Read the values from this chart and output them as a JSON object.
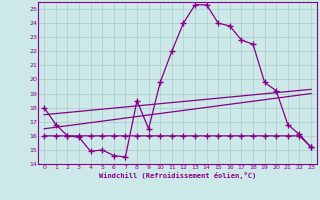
{
  "xlabel": "Windchill (Refroidissement éolien,°C)",
  "background_color": "#cce8e8",
  "line_color": "#880088",
  "grid_color": "#aacccc",
  "xlim_min": -0.5,
  "xlim_max": 23.5,
  "ylim_min": 14,
  "ylim_max": 25.5,
  "yticks": [
    14,
    15,
    16,
    17,
    18,
    19,
    20,
    21,
    22,
    23,
    24,
    25
  ],
  "xticks": [
    0,
    1,
    2,
    3,
    4,
    5,
    6,
    7,
    8,
    9,
    10,
    11,
    12,
    13,
    14,
    15,
    16,
    17,
    18,
    19,
    20,
    21,
    22,
    23
  ],
  "curve1_x": [
    0,
    1,
    2,
    3,
    4,
    5,
    6,
    7,
    8,
    9,
    10,
    11,
    12,
    13,
    14,
    15,
    16,
    17,
    18,
    19,
    20,
    21,
    22,
    23
  ],
  "curve1_y": [
    18.0,
    16.8,
    16.0,
    15.9,
    14.9,
    15.0,
    14.6,
    14.5,
    18.5,
    16.5,
    19.8,
    22.0,
    24.0,
    25.3,
    25.3,
    24.0,
    23.8,
    22.8,
    22.5,
    19.8,
    19.2,
    16.8,
    16.1,
    15.2
  ],
  "curve2_x": [
    0,
    1,
    2,
    3,
    4,
    5,
    6,
    7,
    8,
    9,
    10,
    11,
    12,
    13,
    14,
    15,
    16,
    17,
    18,
    19,
    20,
    21,
    22,
    23
  ],
  "curve2_y": [
    16.0,
    16.0,
    16.0,
    16.0,
    16.0,
    16.0,
    16.0,
    16.0,
    16.0,
    16.0,
    16.0,
    16.0,
    16.0,
    16.0,
    16.0,
    16.0,
    16.0,
    16.0,
    16.0,
    16.0,
    16.0,
    16.0,
    16.0,
    15.2
  ],
  "curve3_x": [
    0,
    23
  ],
  "curve3_y": [
    16.5,
    19.0
  ],
  "curve4_x": [
    0,
    23
  ],
  "curve4_y": [
    17.5,
    19.3
  ]
}
